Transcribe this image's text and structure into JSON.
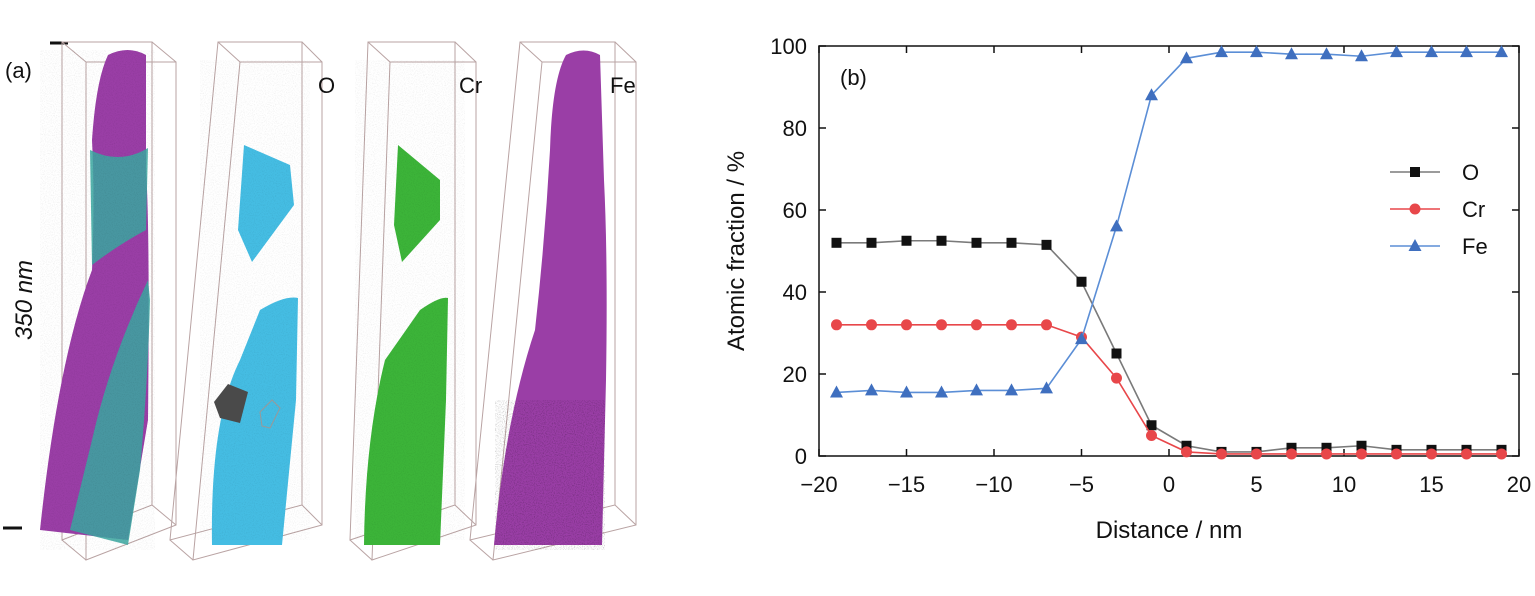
{
  "panel_a": {
    "label": "(a)",
    "scale_label": "350 nm",
    "element_labels": [
      "O",
      "Cr",
      "Fe"
    ],
    "colors": {
      "purple": "#9a3ea6",
      "teal": "#3aa7a0",
      "cyan": "#45bde3",
      "green": "#3cb439"
    }
  },
  "chart_data": {
    "type": "line",
    "panel_label": "(b)",
    "xlabel": "Distance / nm",
    "ylabel": "Atomic fraction / %",
    "xlim": [
      -20,
      20
    ],
    "ylim": [
      0,
      100
    ],
    "xticks": [
      -20,
      -15,
      -10,
      -5,
      0,
      5,
      10,
      15,
      20
    ],
    "xtick_labels": [
      "−20",
      "−15",
      "−10",
      "−5",
      "0",
      "5",
      "10",
      "15",
      "20"
    ],
    "yticks": [
      0,
      20,
      40,
      60,
      80,
      100
    ],
    "legend_position": "right",
    "x": [
      -19,
      -17,
      -15,
      -13,
      -11,
      -9,
      -7,
      -5,
      -3,
      -1,
      1,
      3,
      5,
      7,
      9,
      11,
      13,
      15,
      17,
      19
    ],
    "series": [
      {
        "name": "O",
        "color": "#111111",
        "line_color": "#7a7a7a",
        "marker": "square",
        "values": [
          52,
          52,
          52.5,
          52.5,
          52,
          52,
          51.5,
          42.5,
          25,
          7.5,
          2.5,
          1,
          1,
          2,
          2,
          2.5,
          1.5,
          1.5,
          1.5,
          1.5
        ]
      },
      {
        "name": "Cr",
        "color": "#e8474a",
        "line_color": "#e8474a",
        "marker": "circle",
        "values": [
          32,
          32,
          32,
          32,
          32,
          32,
          32,
          29,
          19,
          5,
          1,
          0.5,
          0.5,
          0.5,
          0.5,
          0.5,
          0.5,
          0.5,
          0.5,
          0.5
        ]
      },
      {
        "name": "Fe",
        "color": "#3f6fbf",
        "line_color": "#5b8ed6",
        "marker": "triangle",
        "values": [
          15.5,
          16,
          15.5,
          15.5,
          16,
          16,
          16.5,
          28.5,
          56,
          88,
          97,
          98.5,
          98.5,
          98,
          98,
          97.5,
          98.5,
          98.5,
          98.5,
          98.5
        ]
      }
    ]
  }
}
